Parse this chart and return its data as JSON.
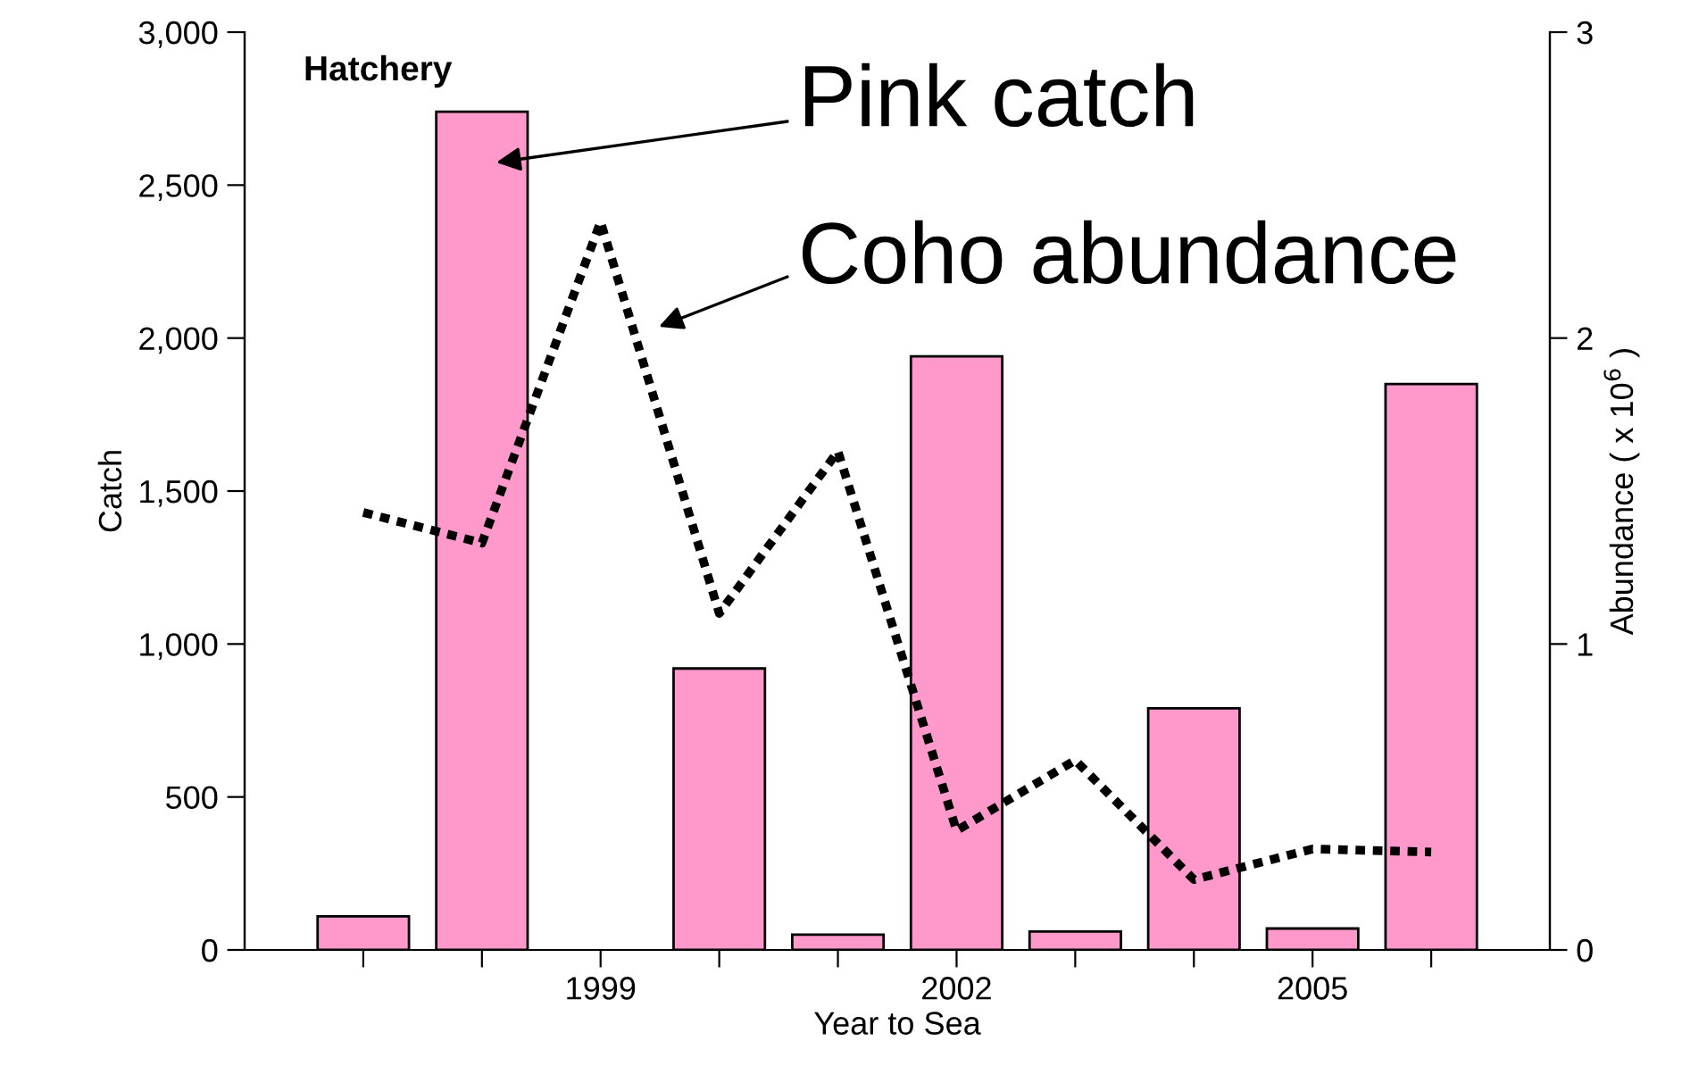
{
  "chart_data": {
    "type": "bar",
    "xlabel": "Year to Sea",
    "ylabel": "Catch",
    "y2label": "Abundance ( x 10$^{6}$ )",
    "x": [
      1997,
      1998,
      1999,
      2000,
      2001,
      2002,
      2003,
      2004,
      2005,
      2006
    ],
    "xlim": [
      1996,
      2007
    ],
    "xticks": [
      {
        "value": 1997,
        "label": null
      },
      {
        "value": 1998,
        "label": null
      },
      1999,
      {
        "value": 2000,
        "label": null
      },
      {
        "value": 2001,
        "label": null
      },
      2002,
      {
        "value": 2003,
        "label": null
      },
      {
        "value": 2004,
        "label": null
      },
      2005,
      {
        "value": 2006,
        "label": null
      }
    ],
    "ylim": [
      0,
      3000
    ],
    "yticks": [
      {
        "value": 0,
        "label": "0"
      },
      {
        "value": 500,
        "label": "500"
      },
      {
        "value": 1000,
        "label": "1,000"
      },
      {
        "value": 1500,
        "label": "1,500"
      },
      {
        "value": 2000,
        "label": "2,000"
      },
      {
        "value": 2500,
        "label": "2,500"
      },
      {
        "value": 3000,
        "label": "3,000"
      }
    ],
    "y2lim": [
      0,
      3
    ],
    "y2ticks": [
      0,
      1,
      2,
      3
    ],
    "series": [
      {
        "color": "#ff99cc",
        "values": [
          110,
          2740,
          null,
          920,
          50,
          1940,
          60,
          790,
          70,
          1850
        ]
      },
      {
        "type": "line",
        "axis": "y2",
        "color": "#000000",
        "line_style": "dotted",
        "marker": "none",
        "values": [
          1.43,
          1.33,
          2.38,
          1.1,
          1.63,
          0.39,
          0.62,
          0.23,
          0.33,
          0.32
        ]
      }
    ],
    "annotations": [
      "Hatchery",
      "Pink catch",
      "Coho abundance"
    ],
    "grid": false,
    "legend": false
  }
}
